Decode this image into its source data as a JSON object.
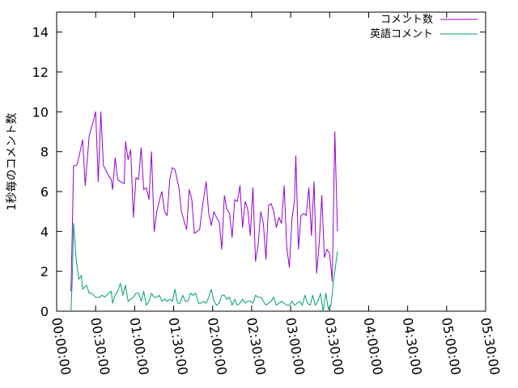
{
  "chart_data": {
    "type": "line",
    "ylabel": "1秒毎のコメント数",
    "ylim": [
      0,
      15
    ],
    "yticks": [
      0,
      2,
      4,
      6,
      8,
      10,
      12,
      14
    ],
    "ytick_labels": [
      "0",
      "2",
      "4",
      "6",
      "8",
      "10",
      "12",
      "14"
    ],
    "xlim_minutes": [
      0,
      330
    ],
    "xticks_minutes": [
      0,
      30,
      60,
      90,
      120,
      150,
      180,
      210,
      240,
      270,
      300,
      330
    ],
    "xtick_labels": [
      "00:00:00",
      "00:30:00",
      "01:00:00",
      "01:30:00",
      "02:00:00",
      "02:30:00",
      "03:00:00",
      "03:30:00",
      "04:00:00",
      "04:30:00",
      "05:00:00",
      "05:30:00"
    ],
    "grid": false,
    "legend_position": "top-right",
    "series": [
      {
        "name": "コメント数",
        "color": "#9400d3",
        "points": [
          [
            11,
            1.0
          ],
          [
            12,
            4.0
          ],
          [
            13,
            7.3
          ],
          [
            15,
            7.3
          ],
          [
            16,
            7.4
          ],
          [
            19,
            8.3
          ],
          [
            20,
            8.6
          ],
          [
            22,
            6.3
          ],
          [
            25,
            8.8
          ],
          [
            28,
            9.5
          ],
          [
            30,
            10.0
          ],
          [
            32,
            6.5
          ],
          [
            34,
            10.0
          ],
          [
            36,
            7.3
          ],
          [
            40,
            6.8
          ],
          [
            42,
            6.6
          ],
          [
            43,
            6.1
          ],
          [
            45,
            7.7
          ],
          [
            47,
            6.6
          ],
          [
            49,
            6.5
          ],
          [
            52,
            6.4
          ],
          [
            53,
            8.5
          ],
          [
            55,
            7.6
          ],
          [
            57,
            8.1
          ],
          [
            59,
            4.7
          ],
          [
            61,
            6.7
          ],
          [
            63,
            6.6
          ],
          [
            65,
            8.2
          ],
          [
            67,
            6.1
          ],
          [
            69,
            6.2
          ],
          [
            71,
            5.6
          ],
          [
            73,
            8.0
          ],
          [
            75,
            4.0
          ],
          [
            77,
            5.0
          ],
          [
            80,
            5.8
          ],
          [
            81,
            6.0
          ],
          [
            83,
            5.0
          ],
          [
            85,
            4.8
          ],
          [
            87,
            6.6
          ],
          [
            89,
            7.2
          ],
          [
            91,
            7.1
          ],
          [
            92,
            6.8
          ],
          [
            94,
            6.2
          ],
          [
            96,
            5.0
          ],
          [
            99,
            4.3
          ],
          [
            100,
            4.1
          ],
          [
            102,
            6.1
          ],
          [
            104,
            5.6
          ],
          [
            106,
            3.9
          ],
          [
            108,
            4.0
          ],
          [
            110,
            4.1
          ],
          [
            112,
            5.2
          ],
          [
            115,
            6.5
          ],
          [
            117,
            4.9
          ],
          [
            119,
            4.3
          ],
          [
            121,
            5.0
          ],
          [
            123,
            4.7
          ],
          [
            125,
            4.5
          ],
          [
            127,
            3.1
          ],
          [
            129,
            5.8
          ],
          [
            131,
            5.1
          ],
          [
            133,
            4.9
          ],
          [
            135,
            3.7
          ],
          [
            137,
            5.6
          ],
          [
            139,
            5.5
          ],
          [
            141,
            6.3
          ],
          [
            143,
            4.2
          ],
          [
            145,
            5.5
          ],
          [
            147,
            5.1
          ],
          [
            149,
            3.8
          ],
          [
            151,
            6.2
          ],
          [
            153,
            2.5
          ],
          [
            155,
            3.3
          ],
          [
            157,
            5.0
          ],
          [
            159,
            4.4
          ],
          [
            161,
            2.6
          ],
          [
            163,
            5.3
          ],
          [
            165,
            5.4
          ],
          [
            167,
            5.0
          ],
          [
            169,
            4.2
          ],
          [
            171,
            4.7
          ],
          [
            173,
            4.4
          ],
          [
            175,
            6.3
          ],
          [
            177,
            3.2
          ],
          [
            179,
            2.2
          ],
          [
            181,
            4.6
          ],
          [
            183,
            5.6
          ],
          [
            184,
            7.8
          ],
          [
            186,
            3.1
          ],
          [
            188,
            4.8
          ],
          [
            190,
            4.9
          ],
          [
            192,
            4.8
          ],
          [
            194,
            6.2
          ],
          [
            196,
            3.8
          ],
          [
            198,
            6.5
          ],
          [
            200,
            1.9
          ],
          [
            202,
            3.4
          ],
          [
            204,
            5.8
          ],
          [
            206,
            2.7
          ],
          [
            208,
            3.1
          ],
          [
            210,
            2.9
          ],
          [
            212,
            1.5
          ],
          [
            214,
            9.0
          ],
          [
            216,
            4.0
          ]
        ]
      },
      {
        "name": "英語コメント",
        "color": "#009e73",
        "points": [
          [
            11,
            0.0
          ],
          [
            12,
            1.6
          ],
          [
            13,
            4.4
          ],
          [
            15,
            2.6
          ],
          [
            17,
            1.6
          ],
          [
            19,
            1.8
          ],
          [
            20,
            1.1
          ],
          [
            23,
            1.3
          ],
          [
            25,
            0.9
          ],
          [
            27,
            0.9
          ],
          [
            30,
            0.7
          ],
          [
            33,
            0.7
          ],
          [
            35,
            0.8
          ],
          [
            37,
            0.7
          ],
          [
            40,
            0.9
          ],
          [
            42,
            1.0
          ],
          [
            43,
            0.4
          ],
          [
            45,
            0.8
          ],
          [
            47,
            1.0
          ],
          [
            49,
            1.4
          ],
          [
            51,
            0.8
          ],
          [
            53,
            1.3
          ],
          [
            55,
            0.5
          ],
          [
            57,
            0.6
          ],
          [
            59,
            0.7
          ],
          [
            61,
            0.9
          ],
          [
            63,
            0.9
          ],
          [
            65,
            0.5
          ],
          [
            67,
            1.0
          ],
          [
            69,
            0.3
          ],
          [
            71,
            0.5
          ],
          [
            73,
            0.9
          ],
          [
            75,
            0.7
          ],
          [
            77,
            0.7
          ],
          [
            79,
            0.8
          ],
          [
            81,
            0.5
          ],
          [
            83,
            0.6
          ],
          [
            85,
            0.5
          ],
          [
            87,
            0.6
          ],
          [
            89,
            0.5
          ],
          [
            91,
            1.1
          ],
          [
            93,
            0.4
          ],
          [
            95,
            0.4
          ],
          [
            97,
            0.8
          ],
          [
            99,
            0.5
          ],
          [
            101,
            0.5
          ],
          [
            103,
            0.9
          ],
          [
            105,
            0.8
          ],
          [
            107,
            0.9
          ],
          [
            109,
            0.4
          ],
          [
            111,
            0.4
          ],
          [
            113,
            0.5
          ],
          [
            115,
            0.4
          ],
          [
            117,
            0.7
          ],
          [
            119,
            1.1
          ],
          [
            121,
            0.5
          ],
          [
            123,
            0.3
          ],
          [
            125,
            0.4
          ],
          [
            127,
            0.8
          ],
          [
            129,
            0.8
          ],
          [
            131,
            0.6
          ],
          [
            133,
            0.7
          ],
          [
            135,
            0.3
          ],
          [
            137,
            0.6
          ],
          [
            139,
            0.3
          ],
          [
            141,
            0.4
          ],
          [
            143,
            0.6
          ],
          [
            145,
            0.4
          ],
          [
            147,
            0.5
          ],
          [
            149,
            0.5
          ],
          [
            151,
            0.4
          ],
          [
            153,
            0.8
          ],
          [
            155,
            0.7
          ],
          [
            157,
            0.7
          ],
          [
            159,
            0.5
          ],
          [
            161,
            0.3
          ],
          [
            163,
            0.4
          ],
          [
            165,
            0.5
          ],
          [
            167,
            0.7
          ],
          [
            169,
            0.3
          ],
          [
            171,
            0.4
          ],
          [
            173,
            0.5
          ],
          [
            175,
            0.4
          ],
          [
            177,
            0.3
          ],
          [
            179,
            0.3
          ],
          [
            181,
            0.5
          ],
          [
            183,
            0.3
          ],
          [
            185,
            0.4
          ],
          [
            187,
            0.5
          ],
          [
            189,
            0.3
          ],
          [
            191,
            0.8
          ],
          [
            193,
            0.4
          ],
          [
            195,
            0.3
          ],
          [
            197,
            0.8
          ],
          [
            199,
            0.3
          ],
          [
            201,
            0.5
          ],
          [
            203,
            0.9
          ],
          [
            205,
            0.0
          ],
          [
            207,
            0.9
          ],
          [
            209,
            0.1
          ],
          [
            211,
            0.3
          ],
          [
            213,
            1.5
          ],
          [
            216,
            3.0
          ]
        ]
      }
    ]
  }
}
